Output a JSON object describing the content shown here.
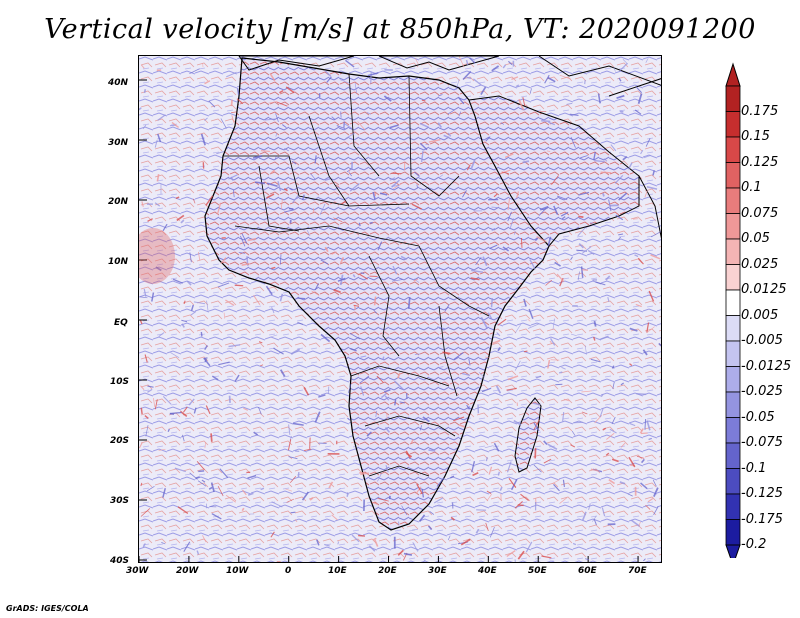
{
  "title": "Vertical velocity [m/s] at 850hPa, VT: 2020091200",
  "credit": "GrADS: IGES/COLA",
  "map": {
    "lat_labels": [
      "40N",
      "30N",
      "20N",
      "10N",
      "EQ",
      "10S",
      "20S",
      "30S",
      "40S"
    ],
    "lon_labels": [
      "30W",
      "20W",
      "10W",
      "0",
      "10E",
      "20E",
      "30E",
      "40E",
      "50E",
      "60E",
      "70E"
    ]
  },
  "colorbar": {
    "labels": [
      "0.175",
      "0.15",
      "0.125",
      "0.1",
      "0.075",
      "0.05",
      "0.025",
      "0.0125",
      "0.005",
      "-0.005",
      "-0.0125",
      "-0.025",
      "-0.05",
      "-0.075",
      "-0.1",
      "-0.125",
      "-0.175",
      "-0.2"
    ],
    "colors": [
      "#b22222",
      "#c62e2e",
      "#d84848",
      "#e06262",
      "#e87c7c",
      "#ef9898",
      "#f4b4b4",
      "#f9d2d2",
      "#ffffff",
      "#dcdcf6",
      "#c4c4f0",
      "#adadea",
      "#9494e0",
      "#7c7cd8",
      "#6464cc",
      "#4c4cc0",
      "#3232b2",
      "#1c1ca0"
    ]
  }
}
